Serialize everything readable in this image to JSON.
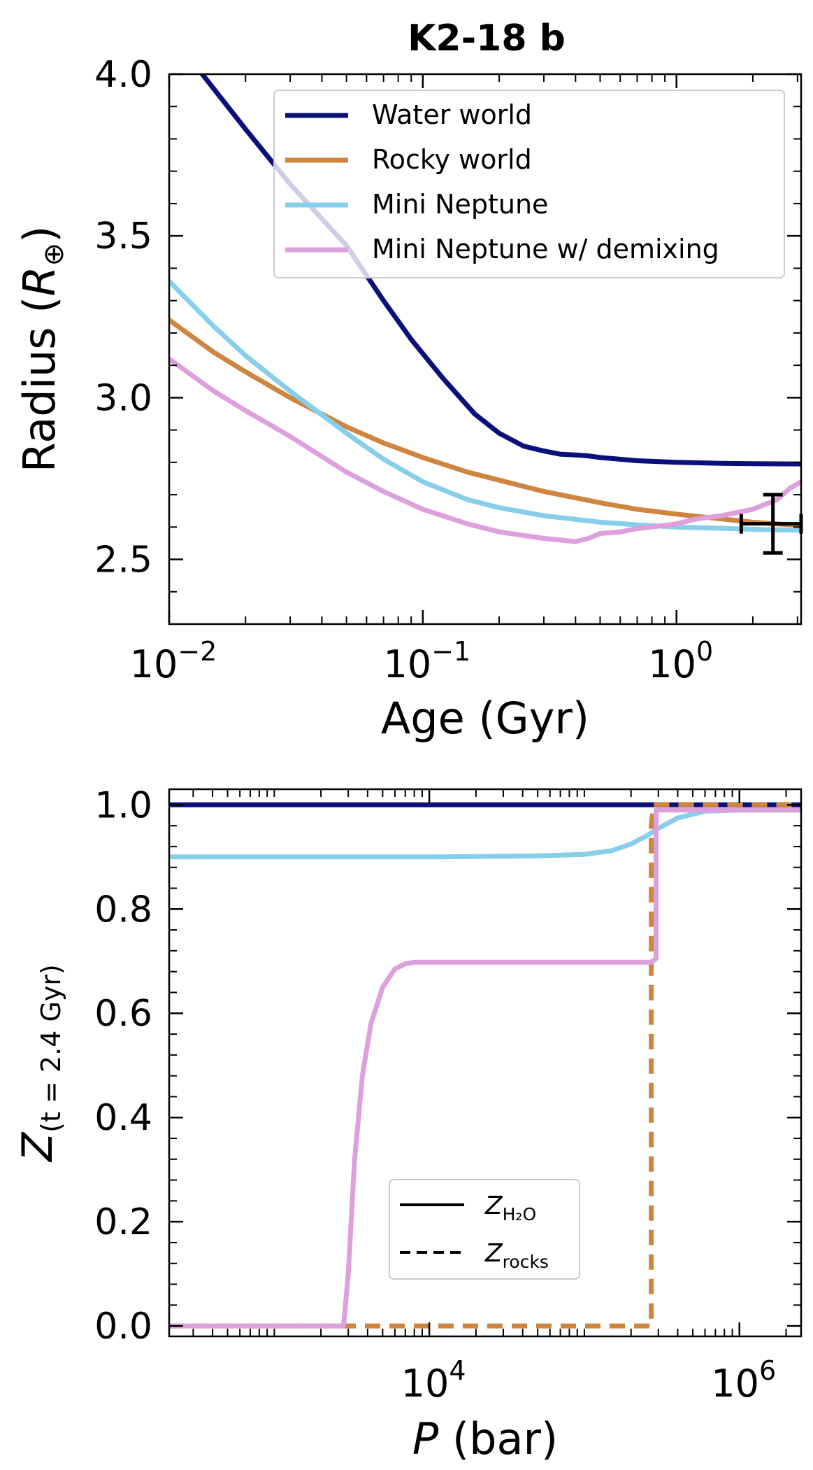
{
  "figure": {
    "title": "K2-18 b"
  },
  "chart_data": [
    {
      "type": "line",
      "title": "K2-18 b",
      "xlabel": "Age (Gyr)",
      "ylabel": "Radius",
      "ylabel_unit": "R",
      "ylabel_unit_sub": "⊕",
      "xscale": "log",
      "xlim": [
        0.01,
        3.1
      ],
      "ylim": [
        2.3,
        4.0
      ],
      "xticks": [
        {
          "value": 0.01,
          "base": "10",
          "exp": "−2"
        },
        {
          "value": 0.1,
          "base": "10",
          "exp": "−1"
        },
        {
          "value": 1,
          "base": "10",
          "exp": "0"
        }
      ],
      "yticks": [
        {
          "value": 2.5,
          "label": "2.5"
        },
        {
          "value": 3.0,
          "label": "3.0"
        },
        {
          "value": 3.5,
          "label": "3.5"
        },
        {
          "value": 4.0,
          "label": "4.0"
        }
      ],
      "grid": false,
      "legend_position": "top-right",
      "series": [
        {
          "name": "Water world",
          "color": "#0a0f7a",
          "style": "solid",
          "x": [
            0.0135,
            0.02,
            0.03,
            0.05,
            0.07,
            0.09,
            0.12,
            0.16,
            0.2,
            0.25,
            0.3,
            0.35,
            0.4,
            0.45,
            0.5,
            0.7,
            1.0,
            1.5,
            2.0,
            3.1
          ],
          "y": [
            4.0,
            3.83,
            3.66,
            3.47,
            3.3,
            3.18,
            3.06,
            2.95,
            2.89,
            2.85,
            2.835,
            2.825,
            2.823,
            2.82,
            2.815,
            2.805,
            2.8,
            2.797,
            2.796,
            2.795
          ]
        },
        {
          "name": "Rocky world",
          "color": "#cd853f",
          "style": "solid",
          "x": [
            0.01,
            0.015,
            0.02,
            0.03,
            0.05,
            0.07,
            0.1,
            0.15,
            0.2,
            0.3,
            0.5,
            0.7,
            1.0,
            1.5,
            2.0,
            3.1
          ],
          "y": [
            3.24,
            3.14,
            3.08,
            3.0,
            2.91,
            2.86,
            2.815,
            2.77,
            2.745,
            2.71,
            2.675,
            2.655,
            2.64,
            2.625,
            2.615,
            2.605
          ]
        },
        {
          "name": "Mini Neptune",
          "color": "#87ceeb",
          "style": "solid",
          "x": [
            0.01,
            0.015,
            0.02,
            0.03,
            0.05,
            0.07,
            0.1,
            0.15,
            0.2,
            0.3,
            0.5,
            0.7,
            1.0,
            1.5,
            2.0,
            3.1
          ],
          "y": [
            3.36,
            3.22,
            3.13,
            3.02,
            2.89,
            2.81,
            2.74,
            2.685,
            2.66,
            2.635,
            2.615,
            2.607,
            2.6,
            2.596,
            2.593,
            2.59
          ]
        },
        {
          "name": "Mini Neptune w/ demixing",
          "color": "#dda0dd",
          "style": "solid",
          "x": [
            0.01,
            0.015,
            0.02,
            0.03,
            0.05,
            0.07,
            0.1,
            0.15,
            0.2,
            0.3,
            0.4,
            0.45,
            0.5,
            0.6,
            0.7,
            0.8,
            1.0,
            1.2,
            1.5,
            2.0,
            2.5,
            2.8,
            3.1
          ],
          "y": [
            3.12,
            3.02,
            2.96,
            2.88,
            2.77,
            2.71,
            2.655,
            2.61,
            2.585,
            2.565,
            2.555,
            2.565,
            2.58,
            2.585,
            2.595,
            2.6,
            2.61,
            2.625,
            2.635,
            2.655,
            2.685,
            2.72,
            2.74
          ]
        }
      ],
      "errorbar": {
        "x": 2.4,
        "y": 2.61,
        "xerr_low": 0.6,
        "xerr_high": 0.7,
        "yerr": 0.09,
        "color": "#000000"
      }
    },
    {
      "type": "line",
      "xlabel": "P",
      "xlabel_unit": "(bar)",
      "ylabel": "Z",
      "ylabel_sub": "(t = 2.4 Gyr)",
      "xscale": "log",
      "xlim": [
        210,
        2500000
      ],
      "ylim": [
        -0.02,
        1.03
      ],
      "xticks": [
        {
          "value": 10000,
          "base": "10",
          "exp": "4"
        },
        {
          "value": 1000000,
          "base": "10",
          "exp": "6"
        }
      ],
      "yticks": [
        {
          "value": 0.0,
          "label": "0.0"
        },
        {
          "value": 0.2,
          "label": "0.2"
        },
        {
          "value": 0.4,
          "label": "0.4"
        },
        {
          "value": 0.6,
          "label": "0.6"
        },
        {
          "value": 0.8,
          "label": "0.8"
        },
        {
          "value": 1.0,
          "label": "1.0"
        }
      ],
      "grid": false,
      "legend_position": "lower-center",
      "legend": [
        {
          "label": "Z",
          "sub": "H₂O",
          "style": "solid"
        },
        {
          "label": "Z",
          "sub": "rocks",
          "style": "dashed"
        }
      ],
      "series": [
        {
          "color": "#0a0f7a",
          "style": "solid",
          "x": [
            210,
            2500000
          ],
          "y": [
            1.0,
            1.0
          ]
        },
        {
          "color": "#0a0f7a",
          "style": "dashed",
          "x": [
            280000,
            2500000
          ],
          "y": [
            1.0,
            1.0
          ]
        },
        {
          "color": "#87ceeb",
          "style": "solid",
          "x": [
            210,
            10000,
            50000,
            100000,
            150000,
            200000,
            250000,
            300000,
            400000,
            600000,
            1000000,
            2500000
          ],
          "y": [
            0.9,
            0.9,
            0.902,
            0.905,
            0.912,
            0.925,
            0.94,
            0.955,
            0.975,
            0.988,
            0.99,
            0.99
          ]
        },
        {
          "color": "#cd853f",
          "style": "dashed",
          "x": [
            210,
            270000,
            270000,
            280000,
            2500000
          ],
          "y": [
            0.0,
            0.0,
            0.96,
            1.0,
            1.0
          ]
        },
        {
          "color": "#dda0dd",
          "style": "solid",
          "x": [
            210,
            2800,
            3000,
            3300,
            3700,
            4200,
            5000,
            6000,
            7000,
            8000,
            270000,
            290000,
            290000,
            2500000
          ],
          "y": [
            0.0,
            0.0,
            0.1,
            0.32,
            0.48,
            0.58,
            0.65,
            0.685,
            0.695,
            0.698,
            0.698,
            0.705,
            0.99,
            0.99
          ]
        }
      ]
    }
  ]
}
